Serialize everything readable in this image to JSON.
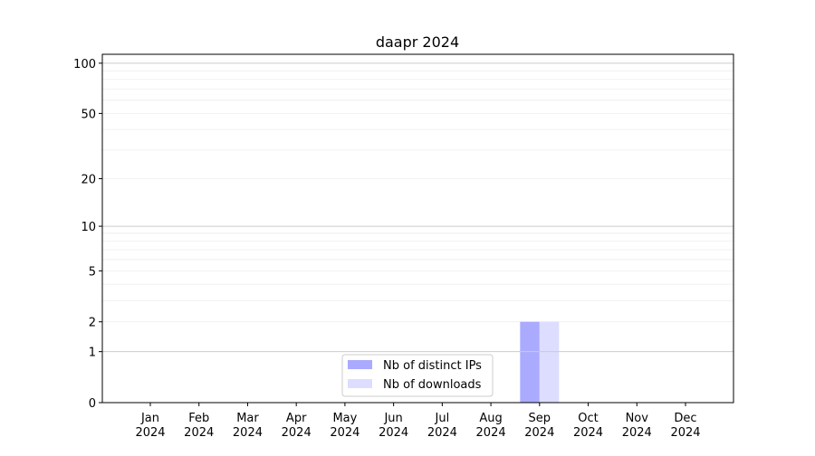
{
  "chart_data": {
    "type": "bar",
    "title": "daapr 2024",
    "xlabel": "",
    "ylabel": "",
    "yscale": "log(1+y)",
    "ylim": [
      0,
      113
    ],
    "grid": true,
    "legend_placement": "lower-center",
    "categories": [
      "Jan\n2024",
      "Feb\n2024",
      "Mar\n2024",
      "Apr\n2024",
      "May\n2024",
      "Jun\n2024",
      "Jul\n2024",
      "Aug\n2024",
      "Sep\n2024",
      "Oct\n2024",
      "Nov\n2024",
      "Dec\n2024"
    ],
    "yticks": [
      0,
      1,
      2,
      5,
      10,
      20,
      50,
      100
    ],
    "series": [
      {
        "name": "Nb of distinct IPs",
        "color": "#aaaaff",
        "values": [
          0,
          0,
          0,
          0,
          0,
          0,
          0,
          0,
          2,
          0,
          0,
          0
        ]
      },
      {
        "name": "Nb of downloads",
        "color": "#ddddff",
        "values": [
          0,
          0,
          0,
          0,
          0,
          0,
          0,
          0,
          2,
          0,
          0,
          0
        ]
      }
    ]
  }
}
